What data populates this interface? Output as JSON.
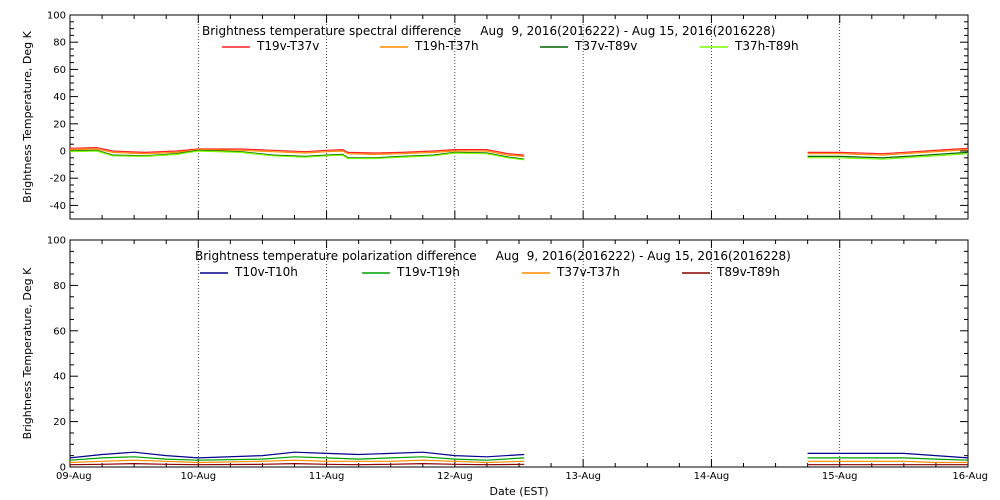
{
  "chart_data": [
    {
      "type": "line",
      "title": "Brightness temperature spectral difference     Aug  9, 2016(2016222) - Aug 15, 2016(2016228)",
      "ylabel": "Brightness Temperature, Deg K",
      "xlabel": "",
      "ylim": [
        -50,
        100
      ],
      "yticks": [
        -40,
        -20,
        0,
        20,
        40,
        60,
        80,
        100
      ],
      "xlim": [
        "2016-08-09",
        "2016-08-16"
      ],
      "x_tick_labels": [],
      "grid": "vertical dotted at day boundaries",
      "legend_placement": "top, horizontal row",
      "gap": [
        "2016-08-12T13:00",
        "2016-08-14T18:00"
      ],
      "series": [
        {
          "name": "T19v-T37v",
          "color": "#ff2020",
          "points": [
            [
              "2016-08-09T00:00",
              2
            ],
            [
              "2016-08-09T05:00",
              2.5
            ],
            [
              "2016-08-09T08:00",
              0
            ],
            [
              "2016-08-09T14:00",
              -1
            ],
            [
              "2016-08-09T20:00",
              0
            ],
            [
              "2016-08-10T00:00",
              1.5
            ],
            [
              "2016-08-10T08:00",
              1.5
            ],
            [
              "2016-08-10T14:00",
              0.5
            ],
            [
              "2016-08-10T20:00",
              -0.5
            ],
            [
              "2016-08-11T00:00",
              0.5
            ],
            [
              "2016-08-11T03:00",
              1
            ],
            [
              "2016-08-11T04:00",
              -1
            ],
            [
              "2016-08-11T09:00",
              -1.5
            ],
            [
              "2016-08-11T14:00",
              -1
            ],
            [
              "2016-08-11T20:00",
              0
            ],
            [
              "2016-08-12T00:00",
              1
            ],
            [
              "2016-08-12T06:00",
              1
            ],
            [
              "2016-08-12T10:00",
              -2
            ],
            [
              "2016-08-12T13:00",
              -3
            ]
          ]
        },
        {
          "name": "T19h-T37h",
          "color": "#ff8c00",
          "points": [
            [
              "2016-08-09T00:00",
              1
            ],
            [
              "2016-08-09T05:00",
              1.5
            ],
            [
              "2016-08-09T08:00",
              -1
            ],
            [
              "2016-08-09T14:00",
              -2
            ],
            [
              "2016-08-09T20:00",
              -1
            ],
            [
              "2016-08-10T00:00",
              1
            ],
            [
              "2016-08-10T08:00",
              0.5
            ],
            [
              "2016-08-10T14:00",
              -0.5
            ],
            [
              "2016-08-10T20:00",
              -1.5
            ],
            [
              "2016-08-11T00:00",
              -0.5
            ],
            [
              "2016-08-11T03:00",
              0
            ],
            [
              "2016-08-11T04:00",
              -2
            ],
            [
              "2016-08-11T09:00",
              -2.5
            ],
            [
              "2016-08-11T14:00",
              -2
            ],
            [
              "2016-08-11T20:00",
              -1
            ],
            [
              "2016-08-12T00:00",
              0
            ],
            [
              "2016-08-12T06:00",
              0
            ],
            [
              "2016-08-12T10:00",
              -3
            ],
            [
              "2016-08-12T13:00",
              -4
            ]
          ]
        },
        {
          "name": "T37v-T89v",
          "color": "#006400",
          "points": [
            [
              "2016-08-09T00:00",
              0
            ],
            [
              "2016-08-09T05:00",
              0.5
            ],
            [
              "2016-08-09T08:00",
              -3
            ],
            [
              "2016-08-09T14:00",
              -3.5
            ],
            [
              "2016-08-09T20:00",
              -2
            ],
            [
              "2016-08-10T00:00",
              0.5
            ],
            [
              "2016-08-10T08:00",
              -0.5
            ],
            [
              "2016-08-10T14:00",
              -3
            ],
            [
              "2016-08-10T20:00",
              -4
            ],
            [
              "2016-08-11T00:00",
              -3
            ],
            [
              "2016-08-11T03:00",
              -2.5
            ],
            [
              "2016-08-11T04:00",
              -5
            ],
            [
              "2016-08-11T09:00",
              -5
            ],
            [
              "2016-08-11T14:00",
              -4
            ],
            [
              "2016-08-11T20:00",
              -3
            ],
            [
              "2016-08-12T00:00",
              -1
            ],
            [
              "2016-08-12T06:00",
              -1.5
            ],
            [
              "2016-08-12T10:00",
              -4.5
            ],
            [
              "2016-08-12T13:00",
              -6
            ]
          ]
        },
        {
          "name": "T37h-T89h",
          "color": "#7cfc00",
          "points": [
            [
              "2016-08-09T00:00",
              -0.5
            ],
            [
              "2016-08-09T05:00",
              0
            ],
            [
              "2016-08-09T08:00",
              -3.5
            ],
            [
              "2016-08-09T14:00",
              -4
            ],
            [
              "2016-08-09T20:00",
              -2.5
            ],
            [
              "2016-08-10T00:00",
              0
            ],
            [
              "2016-08-10T08:00",
              -1
            ],
            [
              "2016-08-10T14:00",
              -3.5
            ],
            [
              "2016-08-10T20:00",
              -4.5
            ],
            [
              "2016-08-11T00:00",
              -3.5
            ],
            [
              "2016-08-11T03:00",
              -3
            ],
            [
              "2016-08-11T04:00",
              -5.5
            ],
            [
              "2016-08-11T09:00",
              -5.5
            ],
            [
              "2016-08-11T14:00",
              -4.5
            ],
            [
              "2016-08-11T20:00",
              -3.5
            ],
            [
              "2016-08-12T00:00",
              -1.5
            ],
            [
              "2016-08-12T06:00",
              -2
            ],
            [
              "2016-08-12T10:00",
              -5
            ],
            [
              "2016-08-12T13:00",
              -6.5
            ]
          ]
        }
      ],
      "series_after_gap": [
        [
          [
            "2016-08-14T18:00",
            -1
          ],
          [
            "2016-08-15T00:00",
            -1
          ],
          [
            "2016-08-15T08:00",
            -2
          ],
          [
            "2016-08-15T14:00",
            -0.5
          ],
          [
            "2016-08-15T20:00",
            1
          ],
          [
            "2016-08-16T00:00",
            2
          ]
        ],
        [
          [
            "2016-08-14T18:00",
            -2
          ],
          [
            "2016-08-15T00:00",
            -2
          ],
          [
            "2016-08-15T08:00",
            -3
          ],
          [
            "2016-08-15T14:00",
            -1.5
          ],
          [
            "2016-08-15T20:00",
            0
          ],
          [
            "2016-08-16T00:00",
            1
          ]
        ],
        [
          [
            "2016-08-14T18:00",
            -4
          ],
          [
            "2016-08-15T00:00",
            -4
          ],
          [
            "2016-08-15T08:00",
            -5
          ],
          [
            "2016-08-15T14:00",
            -3.5
          ],
          [
            "2016-08-15T20:00",
            -2
          ],
          [
            "2016-08-16T00:00",
            -1
          ]
        ],
        [
          [
            "2016-08-14T18:00",
            -5
          ],
          [
            "2016-08-15T00:00",
            -5
          ],
          [
            "2016-08-15T08:00",
            -6
          ],
          [
            "2016-08-15T14:00",
            -4.5
          ],
          [
            "2016-08-15T20:00",
            -3
          ],
          [
            "2016-08-16T00:00",
            -2
          ]
        ]
      ]
    },
    {
      "type": "line",
      "title": "Brightness temperature polarization difference     Aug  9, 2016(2016222) - Aug 15, 2016(2016228)",
      "ylabel": "Brightness Temperature, Deg K",
      "xlabel": "Date (EST)",
      "ylim": [
        0,
        100
      ],
      "yticks": [
        0,
        20,
        40,
        60,
        80,
        100
      ],
      "xlim": [
        "2016-08-09",
        "2016-08-16"
      ],
      "x_tick_labels": [
        "09-Aug",
        "10-Aug",
        "11-Aug",
        "12-Aug",
        "13-Aug",
        "14-Aug",
        "15-Aug",
        "16-Aug"
      ],
      "grid": "vertical dotted at day boundaries",
      "legend_placement": "top, horizontal row",
      "gap": [
        "2016-08-12T13:00",
        "2016-08-14T18:00"
      ],
      "series": [
        {
          "name": "T10v-T10h",
          "color": "#00008b",
          "points": [
            [
              "2016-08-09T00:00",
              4
            ],
            [
              "2016-08-09T06:00",
              5.5
            ],
            [
              "2016-08-09T12:00",
              6.5
            ],
            [
              "2016-08-09T18:00",
              5
            ],
            [
              "2016-08-10T00:00",
              4
            ],
            [
              "2016-08-10T12:00",
              5
            ],
            [
              "2016-08-10T18:00",
              6.5
            ],
            [
              "2016-08-11T00:00",
              6
            ],
            [
              "2016-08-11T06:00",
              5.5
            ],
            [
              "2016-08-11T12:00",
              6
            ],
            [
              "2016-08-11T18:00",
              6.5
            ],
            [
              "2016-08-12T00:00",
              5
            ],
            [
              "2016-08-12T06:00",
              4.5
            ],
            [
              "2016-08-12T13:00",
              5.5
            ]
          ]
        },
        {
          "name": "T19v-T19h",
          "color": "#00a000",
          "points": [
            [
              "2016-08-09T00:00",
              3
            ],
            [
              "2016-08-09T06:00",
              4
            ],
            [
              "2016-08-09T12:00",
              4.5
            ],
            [
              "2016-08-09T18:00",
              3.5
            ],
            [
              "2016-08-10T00:00",
              3
            ],
            [
              "2016-08-10T12:00",
              3.5
            ],
            [
              "2016-08-10T18:00",
              4.5
            ],
            [
              "2016-08-11T00:00",
              4
            ],
            [
              "2016-08-11T06:00",
              3.5
            ],
            [
              "2016-08-11T12:00",
              4
            ],
            [
              "2016-08-11T18:00",
              4.5
            ],
            [
              "2016-08-12T00:00",
              3.5
            ],
            [
              "2016-08-12T06:00",
              3
            ],
            [
              "2016-08-12T13:00",
              4
            ]
          ]
        },
        {
          "name": "T37v-T37h",
          "color": "#ff8c00",
          "points": [
            [
              "2016-08-09T00:00",
              2
            ],
            [
              "2016-08-09T06:00",
              2.5
            ],
            [
              "2016-08-09T12:00",
              3
            ],
            [
              "2016-08-09T18:00",
              2.5
            ],
            [
              "2016-08-10T00:00",
              2
            ],
            [
              "2016-08-10T12:00",
              2.5
            ],
            [
              "2016-08-10T18:00",
              3
            ],
            [
              "2016-08-11T00:00",
              2.5
            ],
            [
              "2016-08-11T06:00",
              2.5
            ],
            [
              "2016-08-11T12:00",
              2.5
            ],
            [
              "2016-08-11T18:00",
              3
            ],
            [
              "2016-08-12T00:00",
              2.5
            ],
            [
              "2016-08-12T06:00",
              2
            ],
            [
              "2016-08-12T13:00",
              2.5
            ]
          ]
        },
        {
          "name": "T89v-T89h",
          "color": "#8b0000",
          "points": [
            [
              "2016-08-09T00:00",
              1
            ],
            [
              "2016-08-09T06:00",
              1.2
            ],
            [
              "2016-08-09T12:00",
              1.5
            ],
            [
              "2016-08-09T18:00",
              1.2
            ],
            [
              "2016-08-10T00:00",
              1
            ],
            [
              "2016-08-10T12:00",
              1.2
            ],
            [
              "2016-08-10T18:00",
              1.5
            ],
            [
              "2016-08-11T00:00",
              1.2
            ],
            [
              "2016-08-11T06:00",
              1
            ],
            [
              "2016-08-11T12:00",
              1.2
            ],
            [
              "2016-08-11T18:00",
              1.5
            ],
            [
              "2016-08-12T00:00",
              1.2
            ],
            [
              "2016-08-12T06:00",
              1
            ],
            [
              "2016-08-12T13:00",
              1.2
            ]
          ]
        }
      ],
      "series_after_gap": [
        [
          [
            "2016-08-14T18:00",
            6
          ],
          [
            "2016-08-15T00:00",
            6
          ],
          [
            "2016-08-15T12:00",
            6
          ],
          [
            "2016-08-15T18:00",
            5
          ],
          [
            "2016-08-16T00:00",
            4
          ]
        ],
        [
          [
            "2016-08-14T18:00",
            4
          ],
          [
            "2016-08-15T00:00",
            4
          ],
          [
            "2016-08-15T12:00",
            4
          ],
          [
            "2016-08-15T18:00",
            3.5
          ],
          [
            "2016-08-16T00:00",
            3
          ]
        ],
        [
          [
            "2016-08-14T18:00",
            2.5
          ],
          [
            "2016-08-15T00:00",
            2.5
          ],
          [
            "2016-08-15T12:00",
            2.5
          ],
          [
            "2016-08-15T18:00",
            2
          ],
          [
            "2016-08-16T00:00",
            2
          ]
        ],
        [
          [
            "2016-08-14T18:00",
            1
          ],
          [
            "2016-08-15T00:00",
            1
          ],
          [
            "2016-08-15T12:00",
            1
          ],
          [
            "2016-08-15T18:00",
            1
          ],
          [
            "2016-08-16T00:00",
            1
          ]
        ]
      ]
    }
  ]
}
